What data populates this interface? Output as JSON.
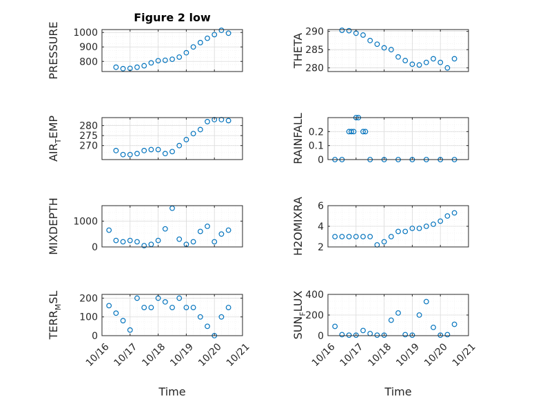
{
  "figure": {
    "title": "Figure 2 low"
  },
  "colors": {
    "series": "#0072BD",
    "axis": "#262626",
    "grid": "#d9d9d9"
  },
  "x_ticks": [
    "10/16",
    "10/17",
    "10/18",
    "10/19",
    "10/20",
    "10/21"
  ],
  "x_label": "Time",
  "chart_data": [
    {
      "type": "scatter",
      "title": "Figure 2 low",
      "ylabel": "PRESSURE",
      "xlim": [
        "10/16",
        "10/21"
      ],
      "ylim": [
        730,
        1020
      ],
      "yticks": [
        "800",
        "900",
        "1000"
      ],
      "grid": true,
      "x": [
        "10/16 12:00",
        "10/16 18:00",
        "10/17 00:00",
        "10/17 06:00",
        "10/17 12:00",
        "10/17 18:00",
        "10/18 00:00",
        "10/18 06:00",
        "10/18 12:00",
        "10/18 18:00",
        "10/19 00:00",
        "10/19 06:00",
        "10/19 12:00",
        "10/19 18:00",
        "10/20 00:00",
        "10/20 06:00",
        "10/20 12:00"
      ],
      "y": [
        760,
        750,
        752,
        760,
        770,
        790,
        805,
        808,
        815,
        830,
        860,
        900,
        930,
        960,
        985,
        1015,
        995
      ]
    },
    {
      "type": "scatter",
      "ylabel": "THETA",
      "xlim": [
        "10/16",
        "10/21"
      ],
      "ylim": [
        279,
        290.5
      ],
      "yticks": [
        "280",
        "285",
        "290"
      ],
      "grid": true,
      "x": [
        "10/16 12:00",
        "10/16 18:00",
        "10/17 00:00",
        "10/17 06:00",
        "10/17 12:00",
        "10/17 18:00",
        "10/18 00:00",
        "10/18 06:00",
        "10/18 12:00",
        "10/18 18:00",
        "10/19 00:00",
        "10/19 06:00",
        "10/19 12:00",
        "10/19 18:00",
        "10/20 00:00",
        "10/20 06:00",
        "10/20 12:00"
      ],
      "y": [
        290.3,
        290.2,
        289.5,
        289,
        287.5,
        286.5,
        285.5,
        285,
        283,
        282,
        281,
        280.8,
        281.5,
        282.5,
        281.5,
        280,
        282.5
      ]
    },
    {
      "type": "scatter",
      "ylabel": "AIR_TEMP",
      "xlim": [
        "10/16",
        "10/21"
      ],
      "ylim": [
        263,
        284
      ],
      "yticks": [
        "270",
        "275",
        "280"
      ],
      "grid": true,
      "x": [
        "10/16 12:00",
        "10/16 18:00",
        "10/17 00:00",
        "10/17 06:00",
        "10/17 12:00",
        "10/17 18:00",
        "10/18 00:00",
        "10/18 06:00",
        "10/18 12:00",
        "10/18 18:00",
        "10/19 00:00",
        "10/19 06:00",
        "10/19 12:00",
        "10/19 18:00",
        "10/20 00:00",
        "10/20 06:00",
        "10/20 12:00"
      ],
      "y": [
        267.5,
        265.5,
        265.5,
        266,
        267.5,
        268,
        268,
        266,
        267,
        270,
        273,
        276,
        278,
        282,
        283,
        283,
        282.5
      ]
    },
    {
      "type": "scatter",
      "ylabel": "RAINFALL",
      "xlim": [
        "10/16",
        "10/21"
      ],
      "ylim": [
        0,
        0.3
      ],
      "yticks": [
        "0",
        "0.1",
        "0.2"
      ],
      "grid": true,
      "x": [
        "10/16 06:00",
        "10/16 12:00",
        "10/16 18:00",
        "10/16 20:00",
        "10/16 22:00",
        "10/17 00:00",
        "10/17 02:00",
        "10/17 06:00",
        "10/17 08:00",
        "10/17 12:00",
        "10/18 00:00",
        "10/18 12:00",
        "10/19 00:00",
        "10/19 12:00",
        "10/20 00:00",
        "10/20 12:00"
      ],
      "y": [
        0,
        0,
        0.2,
        0.2,
        0.2,
        0.3,
        0.3,
        0.2,
        0.2,
        0,
        0,
        0,
        0,
        0,
        0,
        0
      ]
    },
    {
      "type": "scatter",
      "ylabel": "MIXDEPTH",
      "xlim": [
        "10/16",
        "10/21"
      ],
      "ylim": [
        0,
        1600
      ],
      "yticks": [
        "0",
        "1000"
      ],
      "grid": true,
      "x": [
        "10/16 06:00",
        "10/16 12:00",
        "10/16 18:00",
        "10/17 00:00",
        "10/17 06:00",
        "10/17 12:00",
        "10/17 18:00",
        "10/18 00:00",
        "10/18 06:00",
        "10/18 12:00",
        "10/18 18:00",
        "10/19 00:00",
        "10/19 06:00",
        "10/19 12:00",
        "10/19 18:00",
        "10/20 00:00",
        "10/20 06:00",
        "10/20 12:00"
      ],
      "y": [
        650,
        250,
        200,
        250,
        200,
        50,
        100,
        250,
        700,
        1500,
        300,
        100,
        200,
        600,
        800,
        200,
        500,
        650
      ]
    },
    {
      "type": "scatter",
      "ylabel": "H2OMIXRA",
      "xlim": [
        "10/16",
        "10/21"
      ],
      "ylim": [
        2,
        6
      ],
      "yticks": [
        "2",
        "4",
        "6"
      ],
      "grid": true,
      "x": [
        "10/16 06:00",
        "10/16 12:00",
        "10/16 18:00",
        "10/17 00:00",
        "10/17 06:00",
        "10/17 12:00",
        "10/17 18:00",
        "10/18 00:00",
        "10/18 06:00",
        "10/18 12:00",
        "10/18 18:00",
        "10/19 00:00",
        "10/19 06:00",
        "10/19 12:00",
        "10/19 18:00",
        "10/20 00:00",
        "10/20 06:00",
        "10/20 12:00"
      ],
      "y": [
        3,
        3,
        3,
        3,
        3,
        3,
        2.2,
        2.5,
        3,
        3.5,
        3.5,
        3.8,
        3.8,
        4,
        4.2,
        4.5,
        5,
        5.3
      ]
    },
    {
      "type": "scatter",
      "ylabel": "TERR_MSL",
      "xlim": [
        "10/16",
        "10/21"
      ],
      "ylim": [
        0,
        220
      ],
      "yticks": [
        "0",
        "100",
        "200"
      ],
      "grid": true,
      "x": [
        "10/16 06:00",
        "10/16 12:00",
        "10/16 18:00",
        "10/17 00:00",
        "10/17 06:00",
        "10/17 12:00",
        "10/17 18:00",
        "10/18 00:00",
        "10/18 06:00",
        "10/18 12:00",
        "10/18 18:00",
        "10/19 00:00",
        "10/19 06:00",
        "10/19 12:00",
        "10/19 18:00",
        "10/20 00:00",
        "10/20 06:00",
        "10/20 12:00"
      ],
      "y": [
        160,
        120,
        80,
        30,
        200,
        150,
        150,
        200,
        180,
        150,
        200,
        150,
        150,
        100,
        50,
        0,
        100,
        150
      ]
    },
    {
      "type": "scatter",
      "ylabel": "SUN_FLUX",
      "xlim": [
        "10/16",
        "10/21"
      ],
      "ylim": [
        0,
        400
      ],
      "yticks": [
        "0",
        "200",
        "400"
      ],
      "grid": true,
      "x": [
        "10/16 06:00",
        "10/16 12:00",
        "10/16 18:00",
        "10/17 00:00",
        "10/17 06:00",
        "10/17 12:00",
        "10/17 18:00",
        "10/18 00:00",
        "10/18 06:00",
        "10/18 12:00",
        "10/18 18:00",
        "10/19 00:00",
        "10/19 06:00",
        "10/19 12:00",
        "10/19 18:00",
        "10/20 00:00",
        "10/20 06:00",
        "10/20 12:00"
      ],
      "y": [
        90,
        10,
        5,
        5,
        50,
        20,
        5,
        5,
        150,
        220,
        10,
        5,
        200,
        330,
        80,
        5,
        10,
        110
      ]
    }
  ]
}
